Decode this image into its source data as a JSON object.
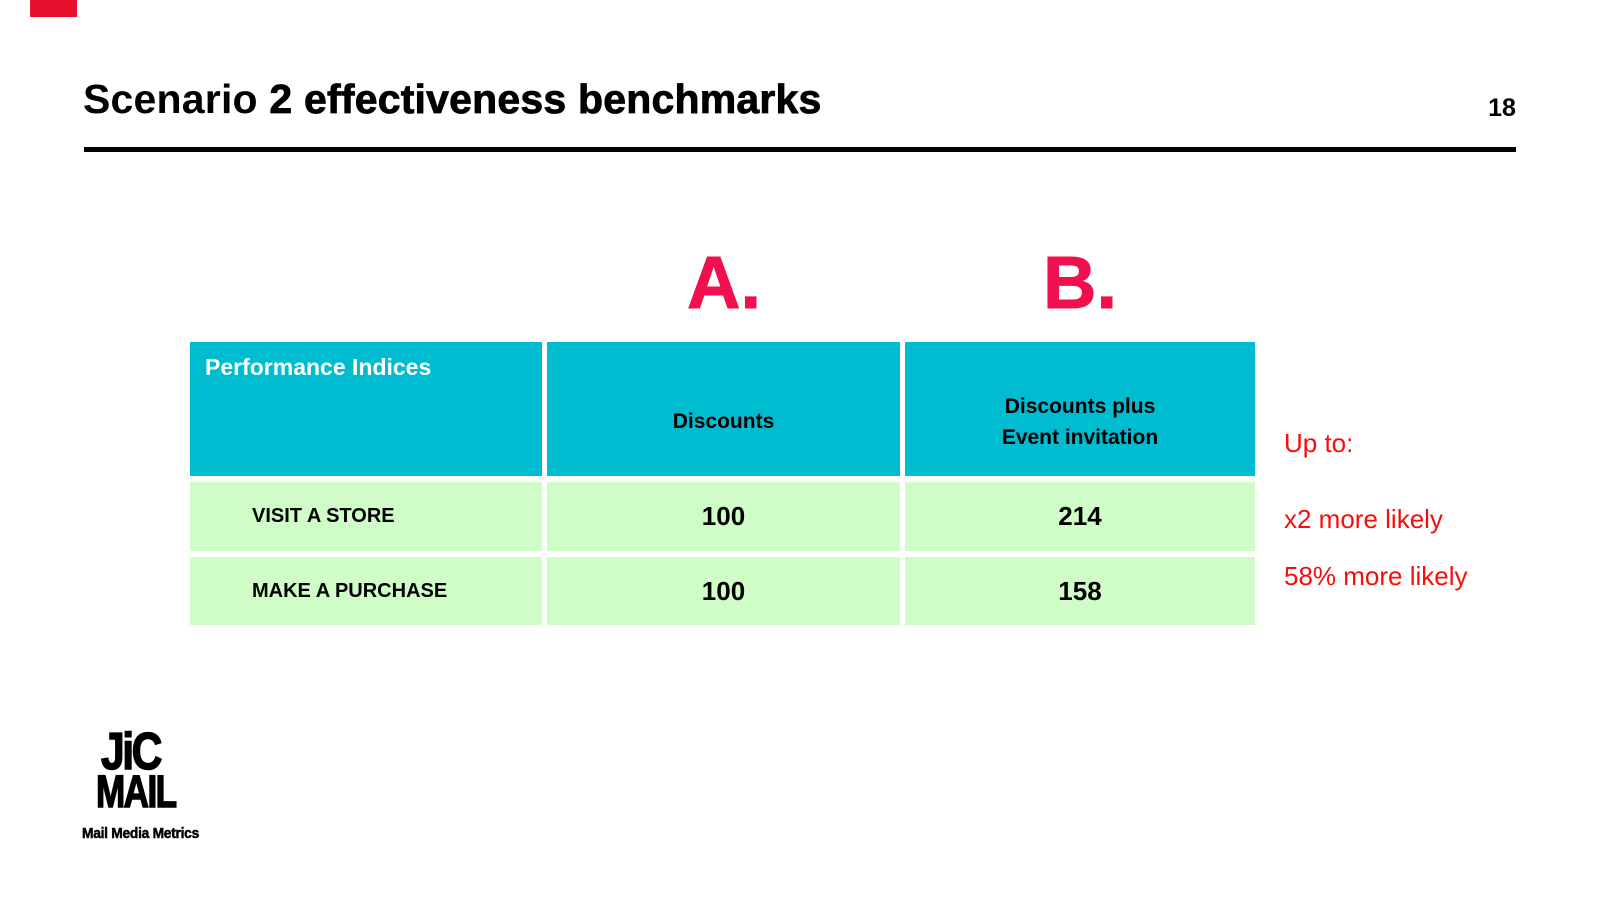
{
  "title": {
    "prefix": "Scenario ",
    "emphasis": "2 effectiveness benchmarks"
  },
  "page_number": "18",
  "column_labels": {
    "a": "A.",
    "b": "B."
  },
  "table": {
    "col1_header": "Performance Indices",
    "col2_header": "Discounts",
    "col3_header_line1": "Discounts plus",
    "col3_header_line2": "Event invitation",
    "rows": [
      {
        "label": "VISIT A STORE",
        "a": "100",
        "b": "214"
      },
      {
        "label": "MAKE A PURCHASE",
        "a": "100",
        "b": "158"
      }
    ]
  },
  "annotations": {
    "lead": "Up to:",
    "row1": "x2 more likely",
    "row2": "58% more likely"
  },
  "logo": {
    "top": "JiC",
    "mid": "MAIL",
    "tagline": "Mail Media Metrics"
  },
  "colors": {
    "teal": "#00bcd0",
    "green": "#cffcc7",
    "red": "#f80d0d",
    "pink": "#f0104e",
    "bar_red": "#e8112d"
  }
}
